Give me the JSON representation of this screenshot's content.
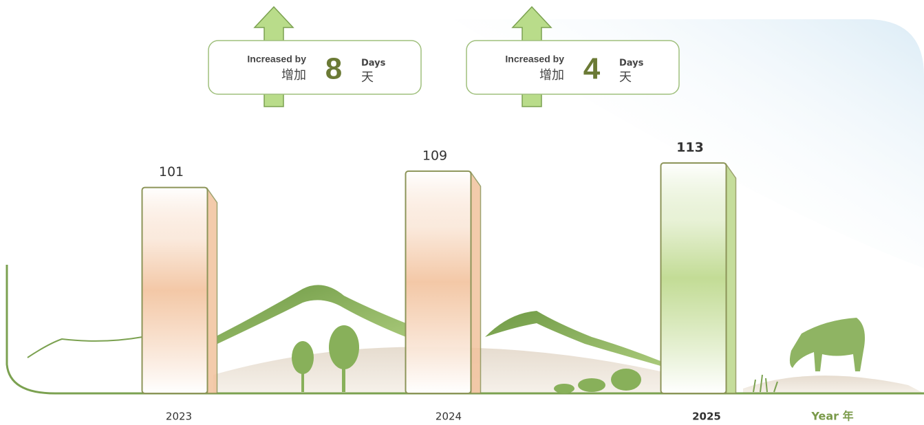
{
  "chart_data": {
    "type": "bar",
    "categories": [
      "2023",
      "2024",
      "2025"
    ],
    "values": [
      101,
      109,
      113
    ],
    "colors": [
      "#f2c29d",
      "#f2c29d",
      "#bcd88a"
    ],
    "x_label": "Year 年",
    "annotations": [
      {
        "label_en": "Increased by",
        "label_zh": "增加",
        "value": 8,
        "unit_en": "Days",
        "unit_zh": "天"
      },
      {
        "label_en": "Increased by",
        "label_zh": "增加",
        "value": 4,
        "unit_en": "Days",
        "unit_zh": "天"
      }
    ]
  }
}
